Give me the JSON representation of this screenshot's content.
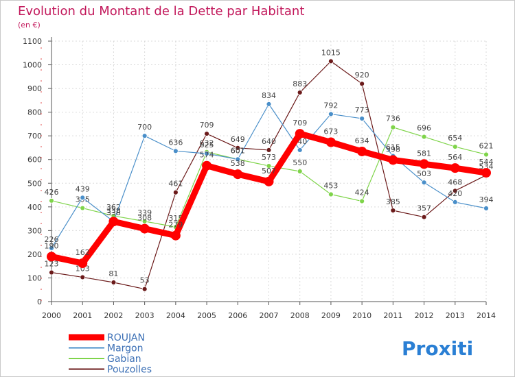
{
  "chart_data": {
    "type": "line",
    "title": "Evolution du Montant de la Dette par Habitant",
    "subtitle": "(en €)",
    "x": [
      "2000",
      "2001",
      "2002",
      "2003",
      "2004",
      "2005",
      "2006",
      "2007",
      "2008",
      "2009",
      "2010",
      "2011",
      "2012",
      "2013",
      "2014"
    ],
    "yticks": [
      0,
      100,
      200,
      300,
      400,
      500,
      600,
      700,
      800,
      900,
      1000,
      1100
    ],
    "ylim": [
      0,
      1100
    ],
    "grid": true,
    "legend_position": "bottom-left",
    "series": [
      {
        "name": "ROUJAN",
        "color": "#ff0000",
        "values": [
          190,
          162,
          338,
          308,
          279,
          574,
          538,
          507,
          709,
          673,
          634,
          598,
          581,
          564,
          544
        ]
      },
      {
        "name": "Margon",
        "color": "#4a8fc9",
        "values": [
          226,
          439,
          338,
          700,
          636,
          625,
          601,
          834,
          640,
          792,
          773,
          615,
          503,
          420,
          394
        ]
      },
      {
        "name": "Gabian",
        "color": "#7fd44a",
        "values": [
          426,
          395,
          362,
          339,
          315,
          632,
          601,
          573,
          550,
          453,
          424,
          736,
          696,
          654,
          621
        ]
      },
      {
        "name": "Pouzolles",
        "color": "#6b1a1a",
        "values": [
          123,
          103,
          81,
          53,
          461,
          709,
          649,
          640,
          883,
          1015,
          920,
          385,
          357,
          468,
          534
        ]
      }
    ]
  },
  "logo": {
    "text": "Proxiti"
  }
}
